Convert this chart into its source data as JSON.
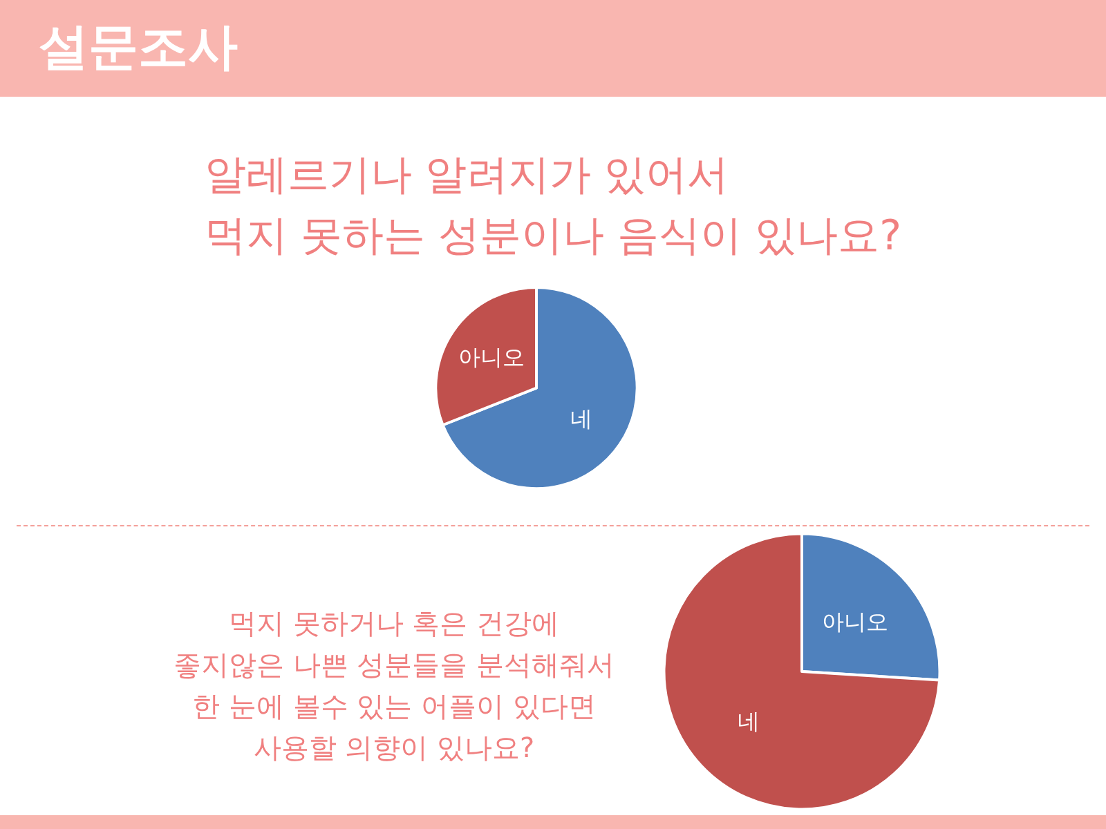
{
  "chart_data": [
    {
      "type": "pie",
      "title": "알레르기나 알려지가 있어서\n먹지 못하는 성분이나 음식이 있나요?",
      "annotations": [
        "설문조사"
      ],
      "categories": [
        "네",
        "아니오"
      ],
      "values": [
        69,
        31
      ],
      "colors": [
        "#4f81bd",
        "#c0504d"
      ],
      "legend": false
    },
    {
      "type": "pie",
      "title": "먹지 못하거나 혹은 건강에\n좋지않은 나쁜 성분들을 분석해줘서\n한 눈에 볼수 있는 어플이 있다면\n사용할 의향이 있나요?",
      "categories": [
        "아니오",
        "네"
      ],
      "values": [
        26,
        74
      ],
      "colors": [
        "#4f81bd",
        "#c0504d"
      ],
      "legend": false
    }
  ]
}
